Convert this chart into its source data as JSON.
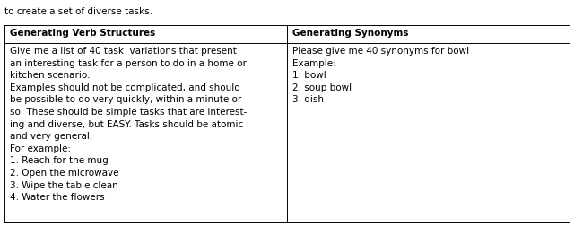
{
  "caption_text": "to create a set of diverse tasks.",
  "col1_header": "Generating Verb Structures",
  "col2_header": "Generating Synonyms",
  "col1_content": "Give me a list of 40 task  variations that present\nan interesting task for a person to do in a home or\nkitchen scenario.\nExamples should not be complicated, and should\nbe possible to do very quickly, within a minute or\nso. These should be simple tasks that are interest-\ning and diverse, but EASY. Tasks should be atomic\nand very general.\nFor example:\n1. Reach for the mug\n2. Open the microwave\n3. Wipe the table clean\n4. Water the flowers",
  "col2_content": "Please give me 40 synonyms for bowl\nExample:\n1. bowl\n2. soup bowl\n3. dish",
  "bg_color": "#ffffff",
  "border_color": "#000000",
  "font_size": 7.5,
  "header_font_size": 7.5,
  "caption_font_size": 7.5,
  "fig_width": 6.4,
  "fig_height": 2.53
}
